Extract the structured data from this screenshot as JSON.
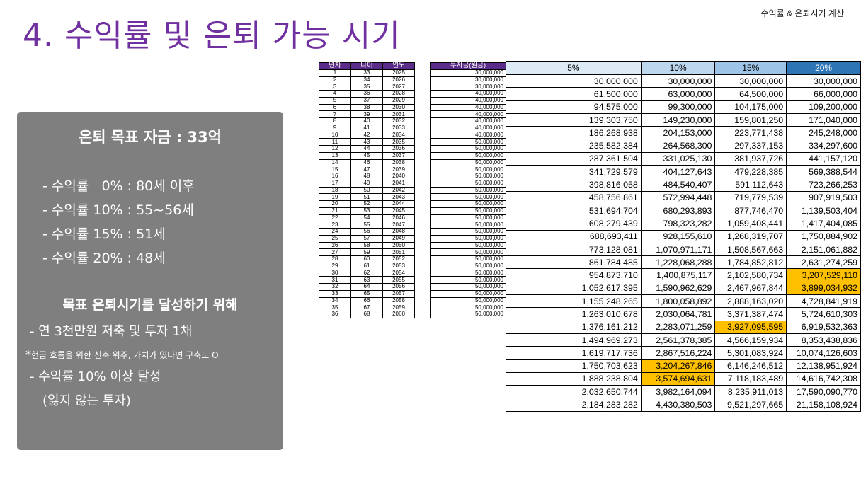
{
  "header": {
    "corner_label": "수익률 & 은퇴시기 계산",
    "title": "4. 수익률 및 은퇴 가능 시기"
  },
  "summary_box": {
    "heading": "은퇴 목표 자금 : 33억",
    "rates": [
      "- 수익률   0% : 80세 이후",
      "- 수익률 10% : 55~56세",
      "- 수익률 15% : 51세",
      "- 수익률 20% : 48세"
    ],
    "subheading": "목표 은퇴시기를 달성하기 위해",
    "bullet1": "- 연 3천만원 저축 및 투자 1채",
    "note_star": "*",
    "note": "현금 흐름을 위한 신축 위주, 가치가 있다면 구축도 O",
    "bullet2": "- 수익률 10% 이상 달성",
    "bullet2_sub": "(잃지 않는 투자)"
  },
  "table": {
    "left_headers": [
      "년차",
      "나이",
      "연도"
    ],
    "invest_header": "투자금(원금)",
    "rate_headers": [
      "5%",
      "10%",
      "15%",
      "20%"
    ],
    "highlight_color": "#ffc000",
    "rows": [
      {
        "n": "1",
        "age": "33",
        "year": "2025",
        "invest": "30,000,000",
        "r5": "30,000,000",
        "r10": "30,000,000",
        "r15": "30,000,000",
        "r20": "30,000,000"
      },
      {
        "n": "2",
        "age": "34",
        "year": "2026",
        "invest": "30,000,000",
        "r5": "61,500,000",
        "r10": "63,000,000",
        "r15": "64,500,000",
        "r20": "66,000,000"
      },
      {
        "n": "3",
        "age": "35",
        "year": "2027",
        "invest": "30,000,000",
        "r5": "94,575,000",
        "r10": "99,300,000",
        "r15": "104,175,000",
        "r20": "109,200,000"
      },
      {
        "n": "4",
        "age": "36",
        "year": "2028",
        "invest": "40,000,000",
        "r5": "139,303,750",
        "r10": "149,230,000",
        "r15": "159,801,250",
        "r20": "171,040,000"
      },
      {
        "n": "5",
        "age": "37",
        "year": "2029",
        "invest": "40,000,000",
        "r5": "186,268,938",
        "r10": "204,153,000",
        "r15": "223,771,438",
        "r20": "245,248,000"
      },
      {
        "n": "6",
        "age": "38",
        "year": "2030",
        "invest": "40,000,000",
        "r5": "235,582,384",
        "r10": "264,568,300",
        "r15": "297,337,153",
        "r20": "334,297,600"
      },
      {
        "n": "7",
        "age": "39",
        "year": "2031",
        "invest": "40,000,000",
        "r5": "287,361,504",
        "r10": "331,025,130",
        "r15": "381,937,726",
        "r20": "441,157,120"
      },
      {
        "n": "8",
        "age": "40",
        "year": "2032",
        "invest": "40,000,000",
        "r5": "341,729,579",
        "r10": "404,127,643",
        "r15": "479,228,385",
        "r20": "569,388,544"
      },
      {
        "n": "9",
        "age": "41",
        "year": "2033",
        "invest": "40,000,000",
        "r5": "398,816,058",
        "r10": "484,540,407",
        "r15": "591,112,643",
        "r20": "723,266,253"
      },
      {
        "n": "10",
        "age": "42",
        "year": "2034",
        "invest": "40,000,000",
        "r5": "458,756,861",
        "r10": "572,994,448",
        "r15": "719,779,539",
        "r20": "907,919,503"
      },
      {
        "n": "11",
        "age": "43",
        "year": "2035",
        "invest": "50,000,000",
        "r5": "531,694,704",
        "r10": "680,293,893",
        "r15": "877,746,470",
        "r20": "1,139,503,404"
      },
      {
        "n": "12",
        "age": "44",
        "year": "2036",
        "invest": "50,000,000",
        "r5": "608,279,439",
        "r10": "798,323,282",
        "r15": "1,059,408,441",
        "r20": "1,417,404,085"
      },
      {
        "n": "13",
        "age": "45",
        "year": "2037",
        "invest": "50,000,000",
        "r5": "688,693,411",
        "r10": "928,155,610",
        "r15": "1,268,319,707",
        "r20": "1,750,884,902"
      },
      {
        "n": "14",
        "age": "46",
        "year": "2038",
        "invest": "50,000,000",
        "r5": "773,128,081",
        "r10": "1,070,971,171",
        "r15": "1,508,567,663",
        "r20": "2,151,061,882"
      },
      {
        "n": "15",
        "age": "47",
        "year": "2039",
        "invest": "50,000,000",
        "r5": "861,784,485",
        "r10": "1,228,068,288",
        "r15": "1,784,852,812",
        "r20": "2,631,274,259"
      },
      {
        "n": "16",
        "age": "48",
        "year": "2040",
        "invest": "50,000,000",
        "r5": "954,873,710",
        "r10": "1,400,875,117",
        "r15": "2,102,580,734",
        "r20": "3,207,529,110",
        "hl": "r20"
      },
      {
        "n": "17",
        "age": "49",
        "year": "2041",
        "invest": "50,000,000",
        "r5": "1,052,617,395",
        "r10": "1,590,962,629",
        "r15": "2,467,967,844",
        "r20": "3,899,034,932",
        "hl": "r20"
      },
      {
        "n": "18",
        "age": "50",
        "year": "2042",
        "invest": "50,000,000",
        "r5": "1,155,248,265",
        "r10": "1,800,058,892",
        "r15": "2,888,163,020",
        "r20": "4,728,841,919"
      },
      {
        "n": "19",
        "age": "51",
        "year": "2043",
        "invest": "50,000,000",
        "r5": "1,263,010,678",
        "r10": "2,030,064,781",
        "r15": "3,371,387,474",
        "r20": "5,724,610,303"
      },
      {
        "n": "20",
        "age": "52",
        "year": "2044",
        "invest": "50,000,000",
        "r5": "1,376,161,212",
        "r10": "2,283,071,259",
        "r15": "3,927,095,595",
        "r20": "6,919,532,363",
        "hl": "r15"
      },
      {
        "n": "21",
        "age": "53",
        "year": "2045",
        "invest": "50,000,000",
        "r5": "1,494,969,273",
        "r10": "2,561,378,385",
        "r15": "4,566,159,934",
        "r20": "8,353,438,836"
      },
      {
        "n": "22",
        "age": "54",
        "year": "2046",
        "invest": "50,000,000",
        "r5": "1,619,717,736",
        "r10": "2,867,516,224",
        "r15": "5,301,083,924",
        "r20": "10,074,126,603"
      },
      {
        "n": "23",
        "age": "55",
        "year": "2047",
        "invest": "50,000,000",
        "r5": "1,750,703,623",
        "r10": "3,204,267,846",
        "r15": "6,146,246,512",
        "r20": "12,138,951,924",
        "hl": "r10"
      },
      {
        "n": "24",
        "age": "56",
        "year": "2048",
        "invest": "50,000,000",
        "r5": "1,888,238,804",
        "r10": "3,574,694,631",
        "r15": "7,118,183,489",
        "r20": "14,616,742,308",
        "hl": "r10"
      },
      {
        "n": "25",
        "age": "57",
        "year": "2049",
        "invest": "50,000,000",
        "r5": "2,032,650,744",
        "r10": "3,982,164,094",
        "r15": "8,235,911,013",
        "r20": "17,590,090,770"
      },
      {
        "n": "26",
        "age": "58",
        "year": "2050",
        "invest": "50,000,000",
        "r5": "2,184,283,282",
        "r10": "4,430,380,503",
        "r15": "9,521,297,665",
        "r20": "21,158,108,924"
      },
      {
        "n": "27",
        "age": "59",
        "year": "2051",
        "invest": "50,000,000"
      },
      {
        "n": "28",
        "age": "60",
        "year": "2052",
        "invest": "50,000,000"
      },
      {
        "n": "29",
        "age": "61",
        "year": "2053",
        "invest": "50,000,000"
      },
      {
        "n": "30",
        "age": "62",
        "year": "2054",
        "invest": "50,000,000"
      },
      {
        "n": "31",
        "age": "63",
        "year": "2055",
        "invest": "50,000,000"
      },
      {
        "n": "32",
        "age": "64",
        "year": "2056",
        "invest": "50,000,000"
      },
      {
        "n": "33",
        "age": "65",
        "year": "2057",
        "invest": "50,000,000"
      },
      {
        "n": "34",
        "age": "66",
        "year": "2058",
        "invest": "50,000,000"
      },
      {
        "n": "35",
        "age": "67",
        "year": "2059",
        "invest": "50,000,000"
      },
      {
        "n": "36",
        "age": "68",
        "year": "2060",
        "invest": "50,000,000"
      }
    ]
  }
}
